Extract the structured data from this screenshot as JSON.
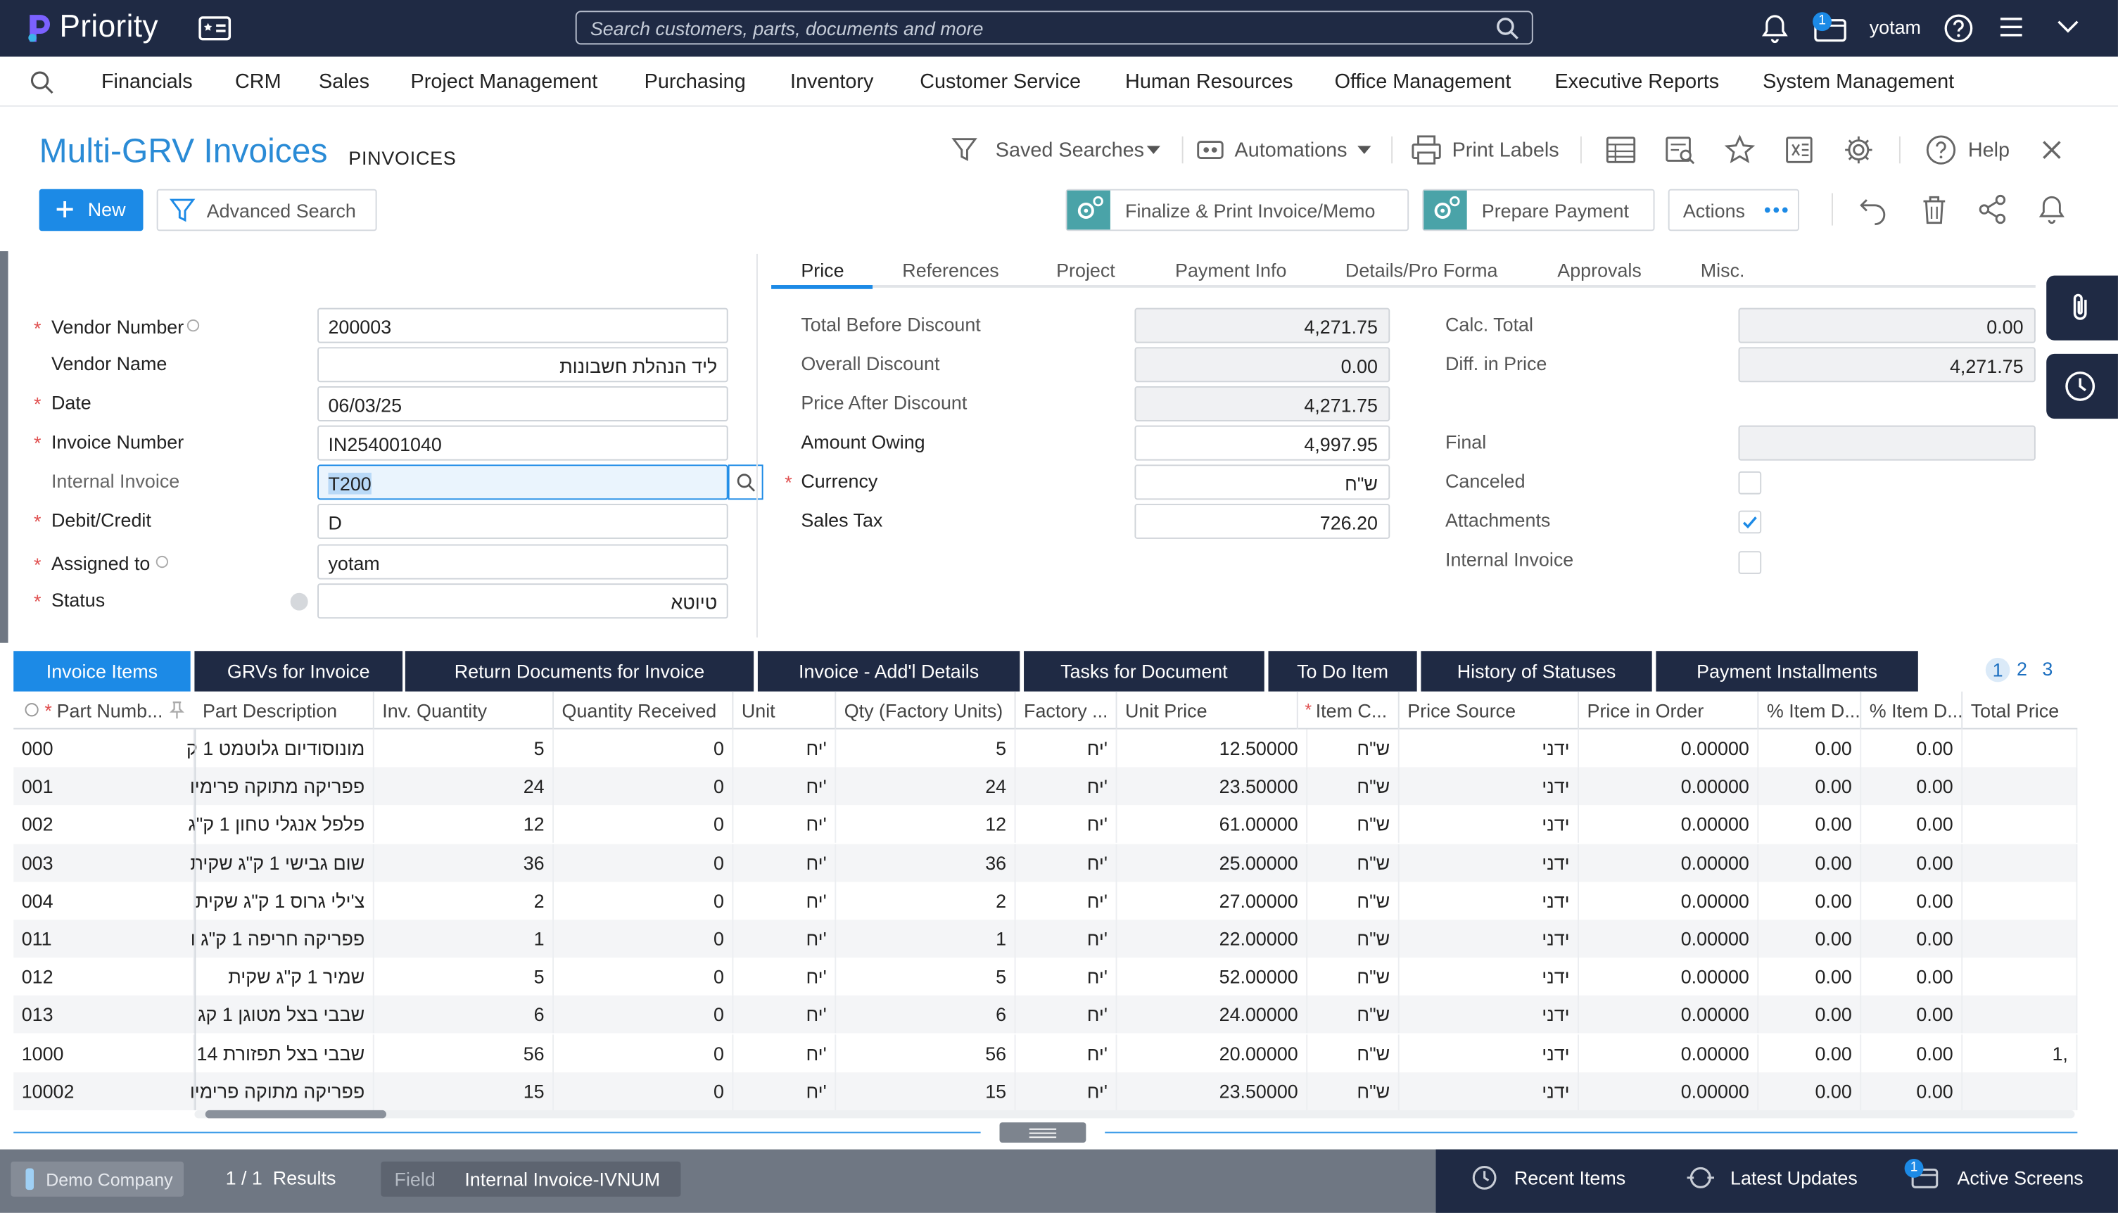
{
  "app": {
    "name": "Priority",
    "user": "yotam",
    "search_placeholder": "Search customers, parts, documents and more",
    "notif_count": "1",
    "screens_count": "1"
  },
  "menu": [
    "Financials",
    "CRM",
    "Sales",
    "Project Management",
    "Purchasing",
    "Inventory",
    "Customer Service",
    "Human Resources",
    "Office Management",
    "Executive Reports",
    "System Management"
  ],
  "page": {
    "title": "Multi-GRV Invoices",
    "code": "PINVOICES"
  },
  "toolbar": {
    "saved_searches": "Saved Searches",
    "automations": "Automations",
    "print_labels": "Print Labels",
    "help": "Help"
  },
  "actions": {
    "new": "New",
    "advanced_search": "Advanced Search",
    "finalize": "Finalize & Print Invoice/Memo",
    "prepare_payment": "Prepare Payment",
    "actions": "Actions"
  },
  "form": {
    "vendor_number": {
      "label": "Vendor Number",
      "value": "200003"
    },
    "vendor_name": {
      "label": "Vendor Name",
      "value": "ליד הנהלת חשבונות"
    },
    "date": {
      "label": "Date",
      "value": "06/03/25"
    },
    "invoice_number": {
      "label": "Invoice Number",
      "value": "IN254001040"
    },
    "internal_invoice": {
      "label": "Internal Invoice",
      "value": "T200"
    },
    "debit_credit": {
      "label": "Debit/Credit",
      "value": "D"
    },
    "assigned_to": {
      "label": "Assigned to",
      "value": "yotam"
    },
    "status": {
      "label": "Status",
      "value": "טיוטא"
    }
  },
  "tabs": [
    "Price",
    "References",
    "Project",
    "Payment Info",
    "Details/Pro Forma",
    "Approvals",
    "Misc."
  ],
  "price": {
    "total_before_discount": {
      "label": "Total Before Discount",
      "value": "4,271.75"
    },
    "overall_discount": {
      "label": "Overall Discount",
      "value": "0.00"
    },
    "price_after_discount": {
      "label": "Price After Discount",
      "value": "4,271.75"
    },
    "amount_owing": {
      "label": "Amount Owing",
      "value": "4,997.95"
    },
    "currency": {
      "label": "Currency",
      "value": "ש\"ח"
    },
    "sales_tax": {
      "label": "Sales Tax",
      "value": "726.20"
    },
    "calc_total": {
      "label": "Calc. Total",
      "value": "0.00"
    },
    "diff_in_price": {
      "label": "Diff. in Price",
      "value": "4,271.75"
    },
    "final": {
      "label": "Final",
      "value": ""
    },
    "canceled": {
      "label": "Canceled"
    },
    "attachments": {
      "label": "Attachments"
    },
    "internal_invoice": {
      "label": "Internal Invoice"
    }
  },
  "subtabs": [
    "Invoice Items",
    "GRVs for Invoice",
    "Return Documents for Invoice",
    "Invoice - Add'l Details",
    "Tasks for Document",
    "To Do Item",
    "History of Statuses",
    "Payment Installments"
  ],
  "pages": [
    "1",
    "2",
    "3"
  ],
  "columns": [
    "Part Numb...",
    "Part Description",
    "Inv. Quantity",
    "Quantity Received",
    "Unit",
    "Qty (Factory Units)",
    "Factory ...",
    "Unit Price",
    "Item C...",
    "Price Source",
    "Price in Order",
    "% Item D...",
    "% Item D...",
    "Total Price"
  ],
  "rows": [
    {
      "part": "000",
      "desc": "מונוסודיום גלוטמט 1 ק",
      "qty": "5",
      "recv": "0",
      "unit": "יח'",
      "fqty": "5",
      "funit": "יח'",
      "price": "12.50000",
      "cur": "ש\"ח",
      "src": "ידני",
      "porder": "0.00000",
      "d1": "0.00",
      "d2": "0.00",
      "total": ""
    },
    {
      "part": "001",
      "desc": "פפריקה מתוקה פרימיו",
      "qty": "24",
      "recv": "0",
      "unit": "יח'",
      "fqty": "24",
      "funit": "יח'",
      "price": "23.50000",
      "cur": "ש\"ח",
      "src": "ידני",
      "porder": "0.00000",
      "d1": "0.00",
      "d2": "0.00",
      "total": ""
    },
    {
      "part": "002",
      "desc": "פלפל אנגלי טחון 1 ק\"ג",
      "qty": "12",
      "recv": "0",
      "unit": "יח'",
      "fqty": "12",
      "funit": "יח'",
      "price": "61.00000",
      "cur": "ש\"ח",
      "src": "ידני",
      "porder": "0.00000",
      "d1": "0.00",
      "d2": "0.00",
      "total": ""
    },
    {
      "part": "003",
      "desc": "שום גבישי 1 ק\"ג שקית",
      "qty": "36",
      "recv": "0",
      "unit": "יח'",
      "fqty": "36",
      "funit": "יח'",
      "price": "25.00000",
      "cur": "ש\"ח",
      "src": "ידני",
      "porder": "0.00000",
      "d1": "0.00",
      "d2": "0.00",
      "total": ""
    },
    {
      "part": "004",
      "desc": "צ'ילי גרוס 1 ק\"ג שקית",
      "qty": "2",
      "recv": "0",
      "unit": "יח'",
      "fqty": "2",
      "funit": "יח'",
      "price": "27.00000",
      "cur": "ש\"ח",
      "src": "ידני",
      "porder": "0.00000",
      "d1": "0.00",
      "d2": "0.00",
      "total": ""
    },
    {
      "part": "011",
      "desc": "פפריקה חריפה 1 ק\"ג ו",
      "qty": "1",
      "recv": "0",
      "unit": "יח'",
      "fqty": "1",
      "funit": "יח'",
      "price": "22.00000",
      "cur": "ש\"ח",
      "src": "ידני",
      "porder": "0.00000",
      "d1": "0.00",
      "d2": "0.00",
      "total": ""
    },
    {
      "part": "012",
      "desc": "שמיר 1 ק\"ג שקית",
      "qty": "5",
      "recv": "0",
      "unit": "יח'",
      "fqty": "5",
      "funit": "יח'",
      "price": "52.00000",
      "cur": "ש\"ח",
      "src": "ידני",
      "porder": "0.00000",
      "d1": "0.00",
      "d2": "0.00",
      "total": ""
    },
    {
      "part": "013",
      "desc": "שבבי בצל מטוגן 1 קג",
      "qty": "6",
      "recv": "0",
      "unit": "יח'",
      "fqty": "6",
      "funit": "יח'",
      "price": "24.00000",
      "cur": "ש\"ח",
      "src": "ידני",
      "porder": "0.00000",
      "d1": "0.00",
      "d2": "0.00",
      "total": ""
    },
    {
      "part": "1000",
      "desc": "שבבי בצל תפזורת 14",
      "qty": "56",
      "recv": "0",
      "unit": "יח'",
      "fqty": "56",
      "funit": "יח'",
      "price": "20.00000",
      "cur": "ש\"ח",
      "src": "ידני",
      "porder": "0.00000",
      "d1": "0.00",
      "d2": "0.00",
      "total": "1,"
    },
    {
      "part": "10002",
      "desc": "פפריקה מתוקה פרימיו",
      "qty": "15",
      "recv": "0",
      "unit": "יח'",
      "fqty": "15",
      "funit": "יח'",
      "price": "23.50000",
      "cur": "ש\"ח",
      "src": "ידני",
      "porder": "0.00000",
      "d1": "0.00",
      "d2": "0.00",
      "total": ""
    }
  ],
  "footer": {
    "company": "Demo Company",
    "results": "1 / 1  Results",
    "field_label": "Field",
    "field_value": "Internal Invoice-IVNUM",
    "recent": "Recent Items",
    "updates": "Latest Updates",
    "screens": "Active Screens"
  },
  "colors": {
    "navy": "#1f2a44",
    "accent": "#1c8ae6",
    "title": "#2a8bd6",
    "required": "#e05050"
  }
}
